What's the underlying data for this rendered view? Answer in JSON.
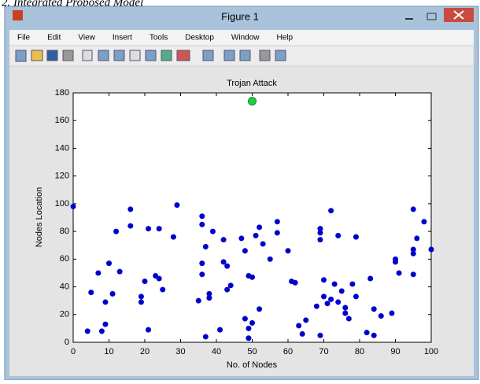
{
  "window": {
    "caption": "2. Integrated Proposed Model",
    "title": "Figure 1",
    "menu": [
      "File",
      "Edit",
      "View",
      "Insert",
      "Tools",
      "Desktop",
      "Window",
      "Help"
    ]
  },
  "chart_data": {
    "type": "scatter",
    "title": "Trojan Attack",
    "x_label": "No. of Nodes",
    "y_label": "Nodes Location",
    "xlim": [
      0,
      100
    ],
    "ylim": [
      0,
      180
    ],
    "xticks": [
      0,
      10,
      20,
      30,
      40,
      50,
      60,
      70,
      80,
      90,
      100
    ],
    "yticks": [
      0,
      20,
      40,
      60,
      80,
      100,
      120,
      140,
      160,
      180
    ],
    "series": [
      {
        "color": "#0000cc",
        "x": [
          0,
          4,
          5,
          7,
          8,
          9,
          9,
          10,
          11,
          12,
          13,
          16,
          16,
          19,
          19,
          20,
          21,
          21,
          23,
          24,
          24,
          25,
          28,
          29,
          35,
          36,
          36,
          36,
          36,
          37,
          37,
          38,
          38,
          39,
          41,
          42,
          42,
          43,
          43,
          44,
          47,
          48,
          49,
          48,
          49,
          49,
          50,
          50,
          51,
          52,
          52,
          53,
          55,
          57,
          57,
          60,
          61,
          62,
          63,
          64,
          65,
          68,
          69,
          69,
          69,
          69,
          70,
          70,
          71,
          72,
          72,
          73,
          74,
          74,
          75,
          76,
          76,
          77,
          78,
          79,
          79,
          82,
          83,
          84,
          84,
          86,
          89,
          90,
          90,
          91,
          95,
          95,
          95,
          95,
          96,
          98,
          100
        ],
        "y": [
          98,
          8,
          36,
          50,
          8,
          13,
          29,
          57,
          35,
          80,
          51,
          96,
          84,
          33,
          29,
          44,
          9,
          82,
          48,
          46,
          82,
          38,
          76,
          99,
          30,
          57,
          49,
          91,
          85,
          4,
          69,
          35,
          32,
          80,
          9,
          58,
          74,
          38,
          55,
          41,
          75,
          66,
          48,
          17,
          10,
          3,
          47,
          14,
          77,
          83,
          24,
          71,
          60,
          87,
          79,
          66,
          44,
          43,
          12,
          6,
          16,
          26,
          82,
          79,
          5,
          74,
          33,
          45,
          28,
          95,
          31,
          42,
          29,
          77,
          37,
          25,
          21,
          17,
          42,
          76,
          33,
          7,
          46,
          5,
          24,
          19,
          21,
          58,
          60,
          50,
          96,
          67,
          64,
          49,
          75,
          87,
          67
        ]
      },
      {
        "color": "#22cc44",
        "x": [
          50
        ],
        "y": [
          174
        ]
      }
    ]
  }
}
